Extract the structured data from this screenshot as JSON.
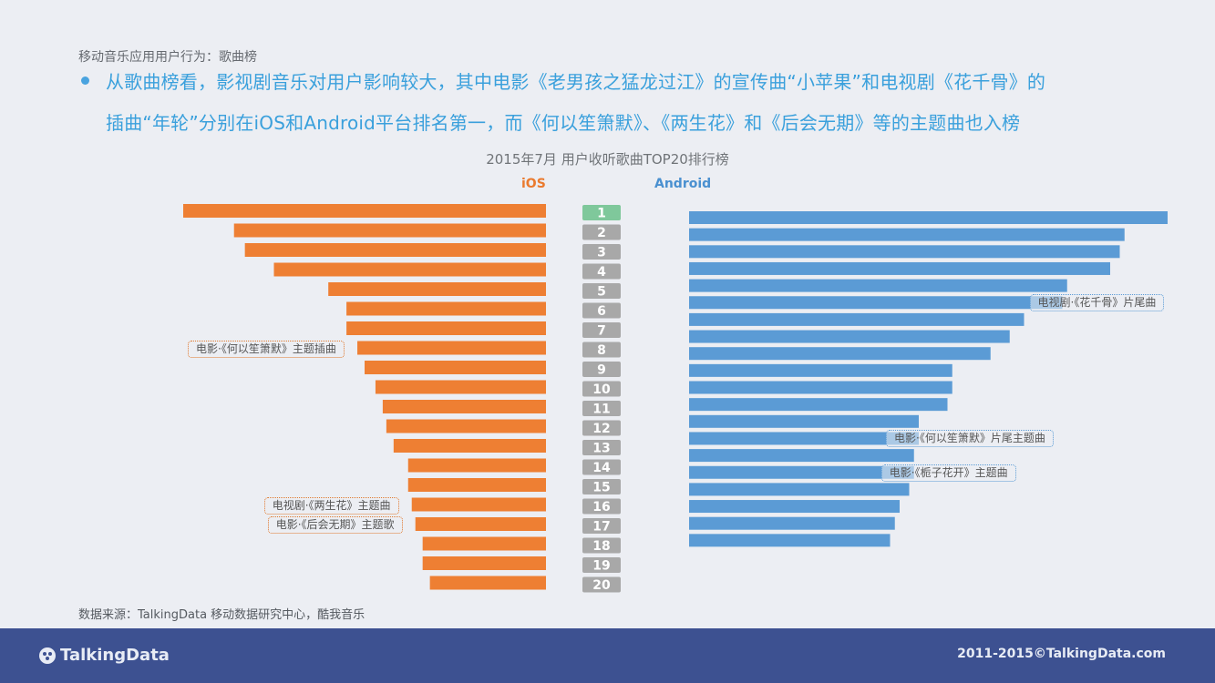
{
  "slide": {
    "subtitle": "移动音乐应用用户行为：歌曲榜",
    "headline_line1": "从歌曲榜看，影视剧音乐对用户影响较大，其中电影《老男孩之猛龙过江》的宣传曲“小苹果”和电视剧《花千骨》的",
    "headline_line2": "插曲“年轮”分别在iOS和Android平台排名第一，而《何以笙箫默》、《两生花》和《后会无期》等的主题曲也入榜",
    "source": "数据来源：TalkingData 移动数据研究中心，酷我音乐"
  },
  "colors": {
    "ios": "#ee7f33",
    "android": "#5b9bd5",
    "rank_top": "#7fc89b",
    "rank_default": "#a8a8a8",
    "headline": "#3aa0dc",
    "footer": "#3d5191"
  },
  "chart_data": {
    "type": "bar",
    "title": "2015年7月 用户收听歌曲TOP20排行榜",
    "categories": [
      "1",
      "2",
      "3",
      "4",
      "5",
      "6",
      "7",
      "8",
      "9",
      "10",
      "11",
      "12",
      "13",
      "14",
      "15",
      "16",
      "17",
      "18",
      "19",
      "20"
    ],
    "series": [
      {
        "name": "iOS",
        "values": [
          100,
          86,
          83,
          75,
          60,
          55,
          55,
          52,
          50,
          47,
          45,
          44,
          42,
          38,
          38,
          37,
          36,
          34,
          34,
          32
        ]
      },
      {
        "name": "Android",
        "values": [
          100,
          91,
          90,
          88,
          79,
          78,
          70,
          67,
          63,
          55,
          55,
          54,
          48,
          48,
          47,
          47,
          46,
          44,
          43,
          42
        ]
      }
    ],
    "xlim": [
      0,
      100
    ],
    "axis_labels_visible": false,
    "annotations": [
      {
        "series": "iOS",
        "rank": "8",
        "text": "电影·《何以笙箫默》主题插曲"
      },
      {
        "series": "iOS",
        "rank": "16",
        "text": "电视剧·《两生花》主题曲"
      },
      {
        "series": "iOS",
        "rank": "17",
        "text": "电影·《后会无期》主题歌"
      },
      {
        "series": "Android",
        "rank": "6",
        "text": "电视剧·《花千骨》片尾曲"
      },
      {
        "series": "Android",
        "rank": "14",
        "text": "电影·《何以笙箫默》片尾主题曲"
      },
      {
        "series": "Android",
        "rank": "16",
        "text": "电影·《栀子花开》主题曲"
      }
    ]
  },
  "footer": {
    "logo": "TalkingData",
    "copyright": "2011-2015©TalkingData.com"
  }
}
